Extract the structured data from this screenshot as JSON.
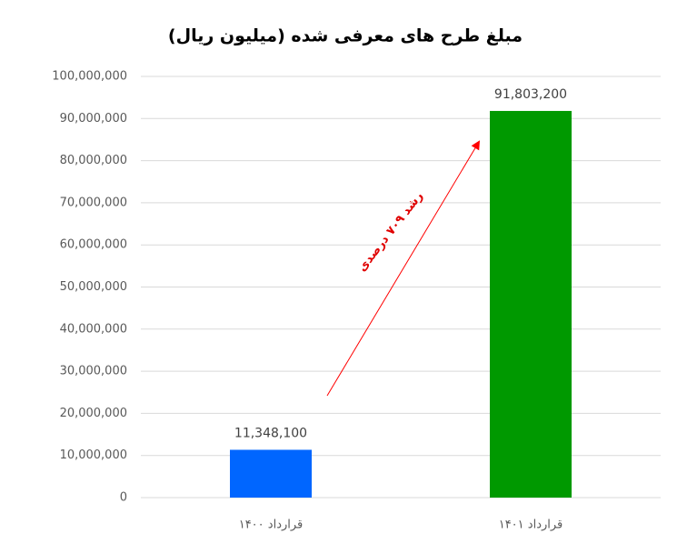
{
  "chart_data": {
    "type": "bar",
    "title": "مبلغ طرح های معرفی شده (میلیون ریال)",
    "categories": [
      "قرارداد ۱۴۰۰",
      "قرارداد ۱۴۰۱"
    ],
    "values": [
      11348100,
      91803200
    ],
    "value_labels": [
      "11,348,100",
      "91,803,200"
    ],
    "colors": [
      "#0066ff",
      "#009900"
    ],
    "ylim": [
      0,
      100000000
    ],
    "yticks": [
      0,
      {
        "value": 10000000,
        "label": "10,000,000"
      },
      {
        "value": 20000000,
        "label": "20,000,000"
      },
      {
        "value": 30000000,
        "label": "30,000,000"
      },
      {
        "value": 40000000,
        "label": "40,000,000"
      },
      {
        "value": 50000000,
        "label": "50,000,000"
      },
      {
        "value": 60000000,
        "label": "60,000,000"
      },
      {
        "value": 70000000,
        "label": "70,000,000"
      },
      {
        "value": 80000000,
        "label": "80,000,000"
      },
      {
        "value": 90000000,
        "label": "90,000,000"
      },
      {
        "value": 100000000,
        "label": "100,000,000"
      }
    ],
    "grid": true,
    "annotation": "رشد ۷۰۹ درصدی"
  }
}
